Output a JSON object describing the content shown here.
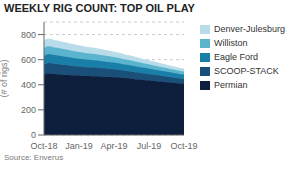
{
  "chart_data": {
    "type": "area",
    "stacked": true,
    "grid": true,
    "legend": "right",
    "title": "WEEKLY RIG COUNT: TOP OIL PLAY",
    "y_label": "(# of rigs)",
    "annotations": [
      "Source: Enverus"
    ],
    "ylim": [
      0,
      900
    ],
    "yticks": [
      0,
      200,
      400,
      600,
      800
    ],
    "categories": [
      "Oct-18",
      null,
      null,
      null,
      null,
      null,
      null,
      null,
      null,
      null,
      null,
      null,
      null,
      "Jan-19",
      null,
      null,
      null,
      null,
      null,
      null,
      null,
      null,
      null,
      null,
      null,
      null,
      "Apr-19",
      null,
      null,
      null,
      null,
      null,
      null,
      null,
      null,
      null,
      null,
      null,
      null,
      "Jul-19",
      null,
      null,
      null,
      null,
      null,
      null,
      null,
      null,
      null,
      null,
      null,
      null,
      "Oct-19"
    ],
    "series": [
      {
        "name": "Permian",
        "color": "#0d1f3c",
        "values": [
          480,
          490,
          490,
          488,
          485,
          484,
          482,
          480,
          479,
          478,
          476,
          475,
          474,
          473,
          472,
          471,
          470,
          469,
          468,
          467,
          466,
          465,
          464,
          463,
          462,
          461,
          460,
          459,
          458,
          455,
          453,
          451,
          449,
          447,
          445,
          443,
          441,
          439,
          437,
          435,
          433,
          431,
          429,
          427,
          425,
          423,
          421,
          419,
          417,
          415,
          413,
          411,
          409
        ]
      },
      {
        "name": "SCOOP-STACK",
        "color": "#1a4f7a",
        "values": [
          80,
          82,
          83,
          83,
          82,
          81,
          80,
          79,
          78,
          77,
          76,
          75,
          74,
          73,
          72,
          71,
          70,
          70,
          70,
          70,
          69,
          68,
          67,
          66,
          65,
          64,
          63,
          62,
          61,
          60,
          59,
          58,
          57,
          56,
          55,
          54,
          53,
          52,
          51,
          50,
          49,
          48,
          47,
          46,
          45,
          44,
          43,
          42,
          41,
          40,
          39,
          38,
          37
        ]
      },
      {
        "name": "Eagle Ford",
        "color": "#1a7fa8",
        "values": [
          70,
          72,
          72,
          71,
          70,
          70,
          69,
          68,
          67,
          66,
          65,
          64,
          63,
          62,
          62,
          62,
          61,
          60,
          60,
          59,
          58,
          57,
          56,
          55,
          55,
          55,
          54,
          53,
          52,
          51,
          50,
          50,
          50,
          49,
          48,
          47,
          46,
          46,
          45,
          44,
          43,
          43,
          42,
          41,
          40,
          40,
          39,
          38,
          37,
          36,
          36,
          35,
          35
        ]
      },
      {
        "name": "Williston",
        "color": "#5ab4ce",
        "values": [
          60,
          62,
          62,
          61,
          60,
          60,
          59,
          58,
          58,
          57,
          56,
          55,
          55,
          54,
          53,
          52,
          51,
          51,
          50,
          50,
          49,
          48,
          48,
          47,
          47,
          46,
          45,
          44,
          43,
          42,
          41,
          40,
          40,
          39,
          38,
          37,
          36,
          35,
          34,
          34,
          33,
          32,
          31,
          30,
          30,
          29,
          28,
          27,
          27,
          26,
          25,
          25,
          25
        ]
      },
      {
        "name": "Denver-Julesburg",
        "color": "#b8dcea",
        "values": [
          55,
          56,
          56,
          55,
          54,
          54,
          53,
          52,
          52,
          51,
          50,
          50,
          49,
          48,
          47,
          46,
          46,
          45,
          45,
          44,
          43,
          43,
          42,
          41,
          40,
          39,
          38,
          37,
          36,
          36,
          35,
          34,
          34,
          33,
          32,
          31,
          30,
          29,
          29,
          28,
          27,
          27,
          26,
          25,
          24,
          23,
          23,
          22,
          22,
          21,
          20,
          19,
          19
        ]
      }
    ]
  }
}
